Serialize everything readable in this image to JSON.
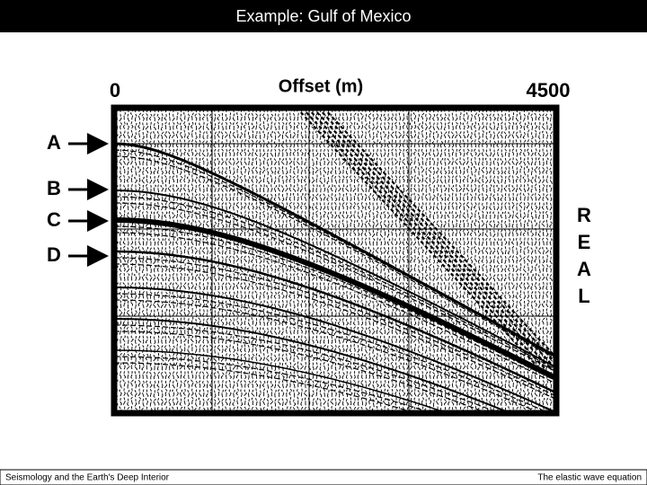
{
  "header": {
    "title": "Example: Gulf of Mexico"
  },
  "figure": {
    "offset_start": 0,
    "offset_label": "Offset (m)",
    "offset_end": 4500,
    "markers": [
      "A",
      "B",
      "C",
      "D"
    ],
    "side_label": [
      "R",
      "E",
      "A",
      "L"
    ]
  },
  "footer": {
    "left": "Seismology and the Earth's Deep Interior",
    "right": "The elastic wave equation"
  }
}
